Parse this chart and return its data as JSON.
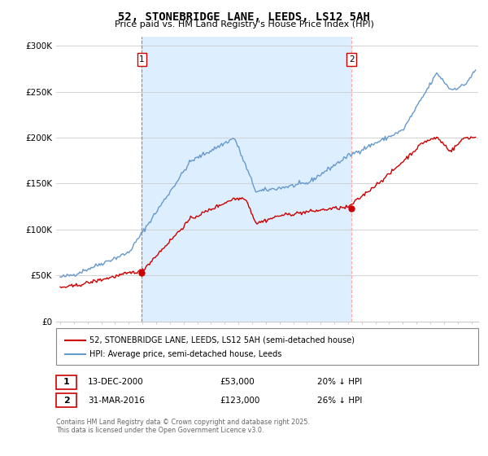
{
  "title": "52, STONEBRIDGE LANE, LEEDS, LS12 5AH",
  "subtitle": "Price paid vs. HM Land Registry's House Price Index (HPI)",
  "legend_line1": "52, STONEBRIDGE LANE, LEEDS, LS12 5AH (semi-detached house)",
  "legend_line2": "HPI: Average price, semi-detached house, Leeds",
  "footer": "Contains HM Land Registry data © Crown copyright and database right 2025.\nThis data is licensed under the Open Government Licence v3.0.",
  "annotation1_label": "1",
  "annotation1_date": "13-DEC-2000",
  "annotation1_price": "£53,000",
  "annotation1_hpi": "20% ↓ HPI",
  "annotation2_label": "2",
  "annotation2_date": "31-MAR-2016",
  "annotation2_price": "£123,000",
  "annotation2_hpi": "26% ↓ HPI",
  "red_color": "#cc0000",
  "blue_color": "#6699cc",
  "shade_color": "#ddeeff",
  "vline1_color": "#888888",
  "vline2_color": "#ffaaaa",
  "ytick_labels": [
    "£0",
    "£50K",
    "£100K",
    "£150K",
    "£200K",
    "£250K",
    "£300K"
  ],
  "ytick_values": [
    0,
    50000,
    100000,
    150000,
    200000,
    250000,
    300000
  ],
  "ylim": [
    0,
    310000
  ],
  "xlim_start": 1994.7,
  "xlim_end": 2025.5,
  "sale1_x": 2000.958,
  "sale1_y": 53000,
  "sale2_x": 2016.25,
  "sale2_y": 123000,
  "background_color": "#ffffff"
}
